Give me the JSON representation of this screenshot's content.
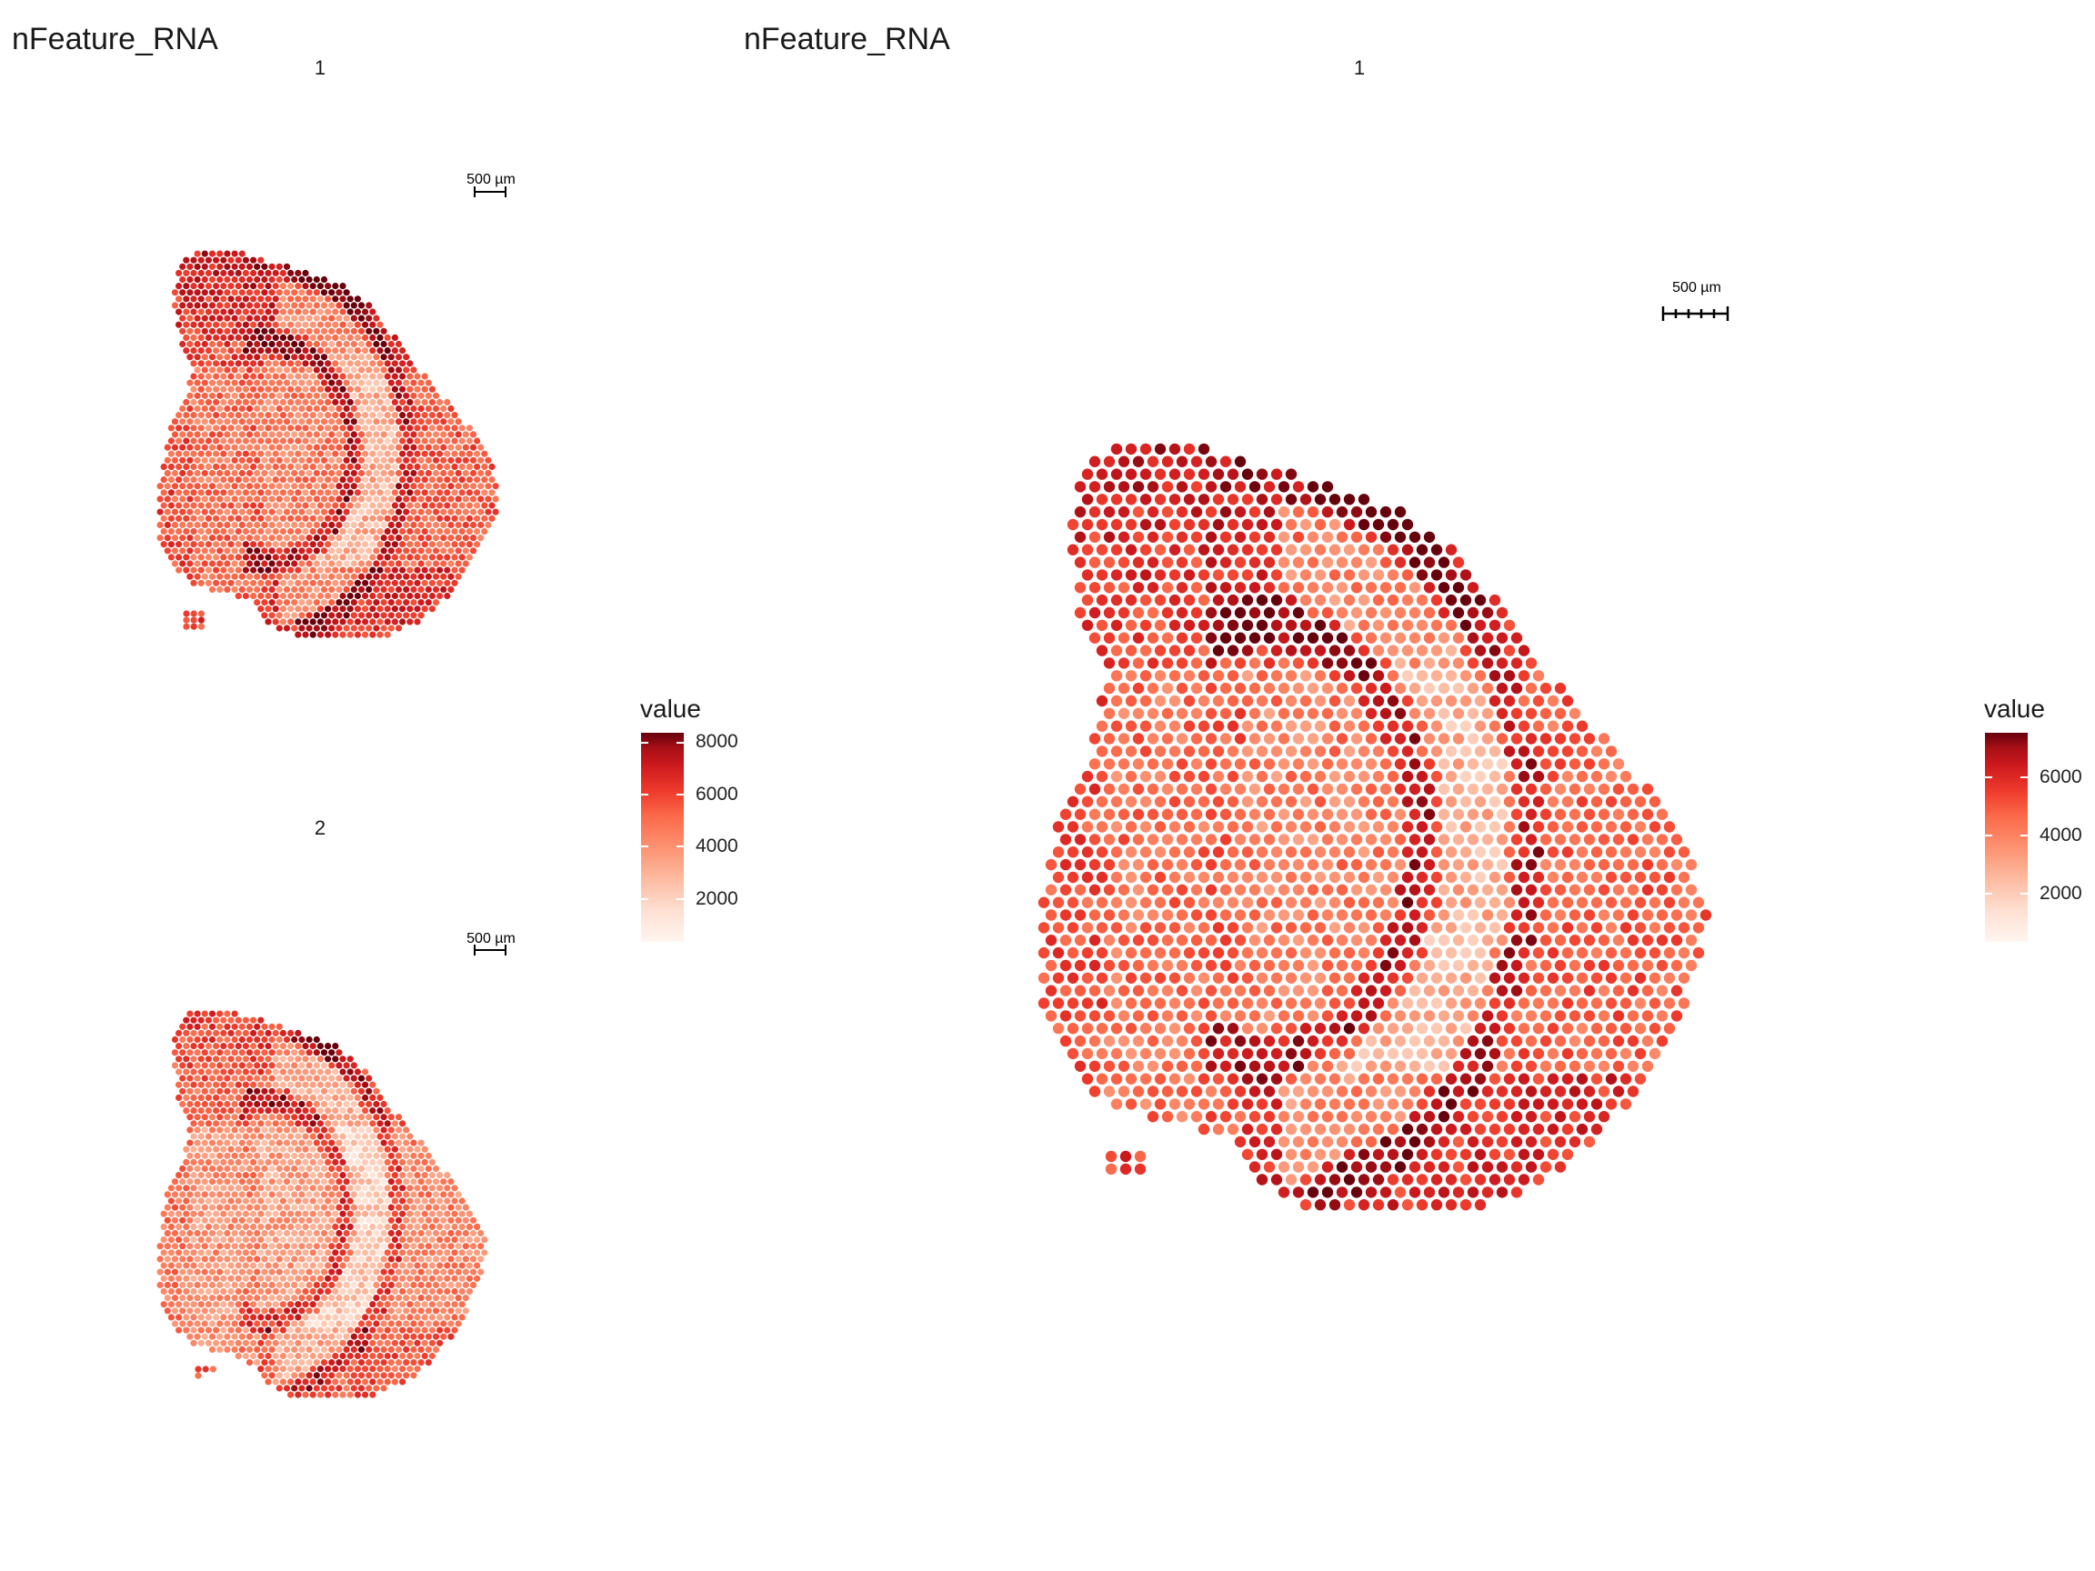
{
  "left_panel": {
    "title": "nFeature_RNA",
    "facets": [
      "1",
      "2"
    ],
    "scalebar_label": "500 µm",
    "legend": {
      "title": "value",
      "ticks": [
        2000,
        4000,
        6000,
        8000
      ],
      "tick_labels": [
        "2000",
        "4000",
        "6000",
        "8000"
      ]
    }
  },
  "right_panel": {
    "title": "nFeature_RNA",
    "facet": "1",
    "scalebar_label": "500 µm",
    "legend": {
      "title": "value",
      "ticks": [
        2000,
        4000,
        6000
      ],
      "tick_labels": [
        "2000",
        "4000",
        "6000"
      ]
    }
  },
  "chart_data": [
    {
      "type": "scatter",
      "subtype": "spatial-feature-plot",
      "feature": "nFeature_RNA",
      "facet": "1",
      "color_scale": {
        "palette": "Reds",
        "low": "#fff5f0",
        "mid": "#ef3b2c",
        "high": "#67000d",
        "range": [
          300,
          8300
        ]
      },
      "grid": false,
      "legend_position": "right"
    },
    {
      "type": "scatter",
      "subtype": "spatial-feature-plot",
      "feature": "nFeature_RNA",
      "facet": "2",
      "color_scale": {
        "palette": "Reds",
        "low": "#fff5f0",
        "mid": "#ef3b2c",
        "high": "#67000d",
        "range": [
          300,
          8300
        ]
      },
      "grid": false,
      "legend_position": "right"
    },
    {
      "type": "scatter",
      "subtype": "spatial-feature-plot",
      "feature": "nFeature_RNA",
      "facet": "1",
      "color_scale": {
        "palette": "Reds",
        "low": "#fff5f0",
        "mid": "#ef3b2c",
        "high": "#67000d",
        "range": [
          300,
          7500
        ]
      },
      "grid": false,
      "legend_position": "right"
    }
  ],
  "colors": {
    "low": "#fff5f0",
    "mid": "#ef3b2c",
    "high": "#67000d"
  }
}
